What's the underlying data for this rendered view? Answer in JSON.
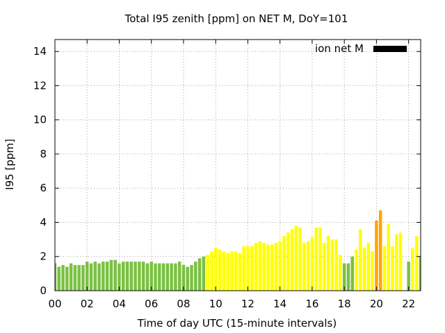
{
  "chart_data": {
    "type": "bar",
    "title": "Total I95 zenith [ppm] on NET M, DoY=101",
    "xlabel": "Time of day UTC (15-minute intervals)",
    "ylabel": "I95 [ppm]",
    "ylim": [
      0,
      14.7
    ],
    "xlim": [
      0,
      22.75
    ],
    "x_ticks": [
      {
        "value": 0,
        "label": "00"
      },
      {
        "value": 2,
        "label": "02"
      },
      {
        "value": 4,
        "label": "04"
      },
      {
        "value": 6,
        "label": "06"
      },
      {
        "value": 8,
        "label": "08"
      },
      {
        "value": 10,
        "label": "10"
      },
      {
        "value": 12,
        "label": "12"
      },
      {
        "value": 14,
        "label": "14"
      },
      {
        "value": 16,
        "label": "16"
      },
      {
        "value": 18,
        "label": "18"
      },
      {
        "value": 20,
        "label": "20"
      },
      {
        "value": 22,
        "label": "22"
      }
    ],
    "y_ticks": [
      0,
      2,
      4,
      6,
      8,
      10,
      12,
      14
    ],
    "grid": true,
    "legend": {
      "label": "ion net M",
      "color": "#000000",
      "placement": "top-right"
    },
    "category_colors": {
      "green": "#7bc043",
      "yellow": "#ffff00",
      "orange": "#ffa500"
    },
    "series": [
      {
        "name": "ion net M",
        "interval_hours": 0.25,
        "values": [
          1.6,
          1.4,
          1.5,
          1.4,
          1.6,
          1.5,
          1.5,
          1.5,
          1.7,
          1.6,
          1.7,
          1.6,
          1.7,
          1.7,
          1.8,
          1.8,
          1.6,
          1.7,
          1.7,
          1.7,
          1.7,
          1.7,
          1.7,
          1.6,
          1.7,
          1.6,
          1.6,
          1.6,
          1.6,
          1.6,
          1.6,
          1.7,
          1.5,
          1.4,
          1.5,
          1.7,
          1.9,
          2.0,
          2.1,
          2.3,
          2.5,
          2.4,
          2.3,
          2.2,
          2.3,
          2.3,
          2.2,
          2.6,
          2.6,
          2.6,
          2.8,
          2.9,
          2.8,
          2.7,
          2.7,
          2.8,
          2.9,
          3.2,
          3.4,
          3.6,
          3.8,
          3.7,
          2.8,
          2.9,
          3.1,
          3.7,
          3.7,
          2.8,
          3.2,
          3.0,
          3.0,
          2.1,
          1.6,
          1.6,
          2.0,
          2.4,
          3.6,
          2.5,
          2.8,
          2.3,
          4.1,
          4.7,
          2.6,
          3.9,
          2.6,
          3.3,
          3.4,
          0,
          1.7,
          2.5,
          3.2,
          2.0
        ],
        "colors": [
          "green",
          "green",
          "green",
          "green",
          "green",
          "green",
          "green",
          "green",
          "green",
          "green",
          "green",
          "green",
          "green",
          "green",
          "green",
          "green",
          "green",
          "green",
          "green",
          "green",
          "green",
          "green",
          "green",
          "green",
          "green",
          "green",
          "green",
          "green",
          "green",
          "green",
          "green",
          "green",
          "green",
          "green",
          "green",
          "green",
          "green",
          "green",
          "yellow",
          "yellow",
          "yellow",
          "yellow",
          "yellow",
          "yellow",
          "yellow",
          "yellow",
          "yellow",
          "yellow",
          "yellow",
          "yellow",
          "yellow",
          "yellow",
          "yellow",
          "yellow",
          "yellow",
          "yellow",
          "yellow",
          "yellow",
          "yellow",
          "yellow",
          "yellow",
          "yellow",
          "yellow",
          "yellow",
          "yellow",
          "yellow",
          "yellow",
          "yellow",
          "yellow",
          "yellow",
          "yellow",
          "yellow",
          "green",
          "green",
          "green",
          "yellow",
          "yellow",
          "yellow",
          "yellow",
          "yellow",
          "orange",
          "orange",
          "yellow",
          "yellow",
          "yellow",
          "yellow",
          "yellow",
          "yellow",
          "green",
          "yellow",
          "yellow",
          "green"
        ]
      }
    ]
  }
}
